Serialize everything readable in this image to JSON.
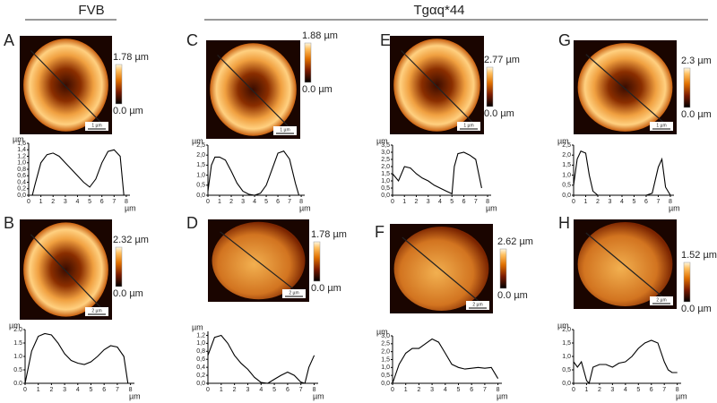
{
  "figure": {
    "groups": [
      "FVB",
      "Tgαq*44"
    ],
    "panels": [
      {
        "letter": "A",
        "scale_max": "1.78 µm",
        "scale_min": "0.0 µm",
        "scale_bar": "1 µm"
      },
      {
        "letter": "B",
        "scale_max": "2.32 µm",
        "scale_min": "0.0 µm",
        "scale_bar": "2 µm"
      },
      {
        "letter": "C",
        "scale_max": "1.88 µm",
        "scale_min": "0.0 µm",
        "scale_bar": "1 µm"
      },
      {
        "letter": "D",
        "scale_max": "1.78 µm",
        "scale_min": "0.0 µm",
        "scale_bar": "2 µm"
      },
      {
        "letter": "E",
        "scale_max": "2.77 µm",
        "scale_min": "0.0 µm",
        "scale_bar": "1 µm"
      },
      {
        "letter": "F",
        "scale_max": "2.62 µm",
        "scale_min": "0.0 µm",
        "scale_bar": "2 µm"
      },
      {
        "letter": "G",
        "scale_max": "2.3 µm",
        "scale_min": "0.0 µm",
        "scale_bar": "1 µm"
      },
      {
        "letter": "H",
        "scale_max": "1.52 µm",
        "scale_min": "0.0 µm",
        "scale_bar": "2 µm"
      }
    ]
  },
  "chart_data": [
    {
      "type": "line",
      "x_label": "µm",
      "y_label": "µm",
      "xlim": [
        0,
        8.3
      ],
      "xticks": [
        0,
        1,
        2,
        3,
        4,
        5,
        6,
        7,
        8
      ],
      "ylim": [
        0,
        1.6
      ],
      "yticks": [
        {
          "value": 0,
          "label": "0,0"
        },
        {
          "value": 0.2,
          "label": "0,2"
        },
        {
          "value": 0.4,
          "label": "0,4"
        },
        {
          "value": 0.6,
          "label": "0,6"
        },
        {
          "value": 0.8,
          "label": "0,8"
        },
        {
          "value": 1,
          "label": "1,0"
        },
        {
          "value": 1.2,
          "label": "1,2"
        },
        {
          "value": 1.4,
          "label": "1,4"
        },
        {
          "value": 1.6,
          "label": "1,6"
        }
      ],
      "x": [
        0.3,
        0.5,
        1,
        1.5,
        2,
        2.5,
        3,
        3.5,
        4,
        4.5,
        5,
        5.5,
        6,
        6.5,
        7,
        7.5,
        7.8
      ],
      "values": [
        0,
        0.3,
        1.0,
        1.25,
        1.3,
        1.2,
        1.0,
        0.8,
        0.6,
        0.4,
        0.25,
        0.5,
        1.0,
        1.35,
        1.4,
        1.2,
        0
      ],
      "color": "#000000"
    },
    {
      "type": "line",
      "x_label": "µm",
      "y_label": "µm",
      "xlim": [
        0,
        8.3
      ],
      "xticks": [
        0,
        1,
        2,
        3,
        4,
        5,
        6,
        7,
        8
      ],
      "ylim": [
        0,
        2
      ],
      "yticks": [
        {
          "value": 0,
          "label": "0.0"
        },
        {
          "value": 0.5,
          "label": "0.5"
        },
        {
          "value": 1,
          "label": "1.0"
        },
        {
          "value": 1.5,
          "label": "1.5"
        },
        {
          "value": 2,
          "label": "2.0"
        }
      ],
      "x": [
        0,
        0.5,
        1,
        1.5,
        2,
        2.5,
        3,
        3.5,
        4,
        4.5,
        5,
        5.5,
        6,
        6.5,
        7,
        7.5,
        7.8
      ],
      "values": [
        0,
        1.2,
        1.75,
        1.85,
        1.8,
        1.5,
        1.1,
        0.85,
        0.75,
        0.7,
        0.8,
        1.0,
        1.25,
        1.4,
        1.35,
        1.0,
        0
      ],
      "color": "#000000"
    },
    {
      "type": "line",
      "x_label": "µm",
      "y_label": "µm",
      "xlim": [
        0,
        8.3
      ],
      "xticks": [
        0,
        1,
        2,
        3,
        4,
        5,
        6,
        7,
        8
      ],
      "ylim": [
        0,
        2.5
      ],
      "yticks": [
        {
          "value": 0,
          "label": "0,0"
        },
        {
          "value": 0.5,
          "label": "0,5"
        },
        {
          "value": 1,
          "label": "1,0"
        },
        {
          "value": 1.5,
          "label": "1,5"
        },
        {
          "value": 2,
          "label": "2,0"
        },
        {
          "value": 2.5,
          "label": "2,5"
        }
      ],
      "x": [
        0,
        0.3,
        0.6,
        1,
        1.5,
        2,
        2.5,
        3,
        3.5,
        4,
        4.5,
        5,
        5.5,
        6,
        6.5,
        7,
        7.5,
        7.8
      ],
      "values": [
        0.2,
        1.5,
        1.9,
        1.9,
        1.75,
        1.2,
        0.6,
        0.2,
        0.05,
        0,
        0.1,
        0.5,
        1.3,
        2.1,
        2.2,
        1.8,
        0.6,
        0
      ],
      "color": "#000000"
    },
    {
      "type": "line",
      "x_label": "µm",
      "y_label": "µm",
      "xlim": [
        0,
        8.3
      ],
      "xticks": [
        0,
        1,
        2,
        3,
        4,
        5,
        6,
        7,
        8
      ],
      "ylim": [
        0,
        1.3
      ],
      "yticks": [
        {
          "value": 0,
          "label": "0,0"
        },
        {
          "value": 0.2,
          "label": "0,2"
        },
        {
          "value": 0.4,
          "label": "0,4"
        },
        {
          "value": 0.6,
          "label": "0,6"
        },
        {
          "value": 0.8,
          "label": "0,8"
        },
        {
          "value": 1,
          "label": "1,0"
        },
        {
          "value": 1.2,
          "label": "1,2"
        }
      ],
      "x": [
        0,
        0.5,
        1,
        1.5,
        2,
        2.5,
        3,
        3.5,
        4,
        4.5,
        5,
        5.5,
        6,
        6.5,
        7,
        7.3,
        7.6,
        8
      ],
      "values": [
        0.7,
        1.15,
        1.2,
        1.0,
        0.7,
        0.5,
        0.35,
        0.15,
        0.02,
        0,
        0.1,
        0.2,
        0.28,
        0.2,
        0.03,
        0,
        0.4,
        0.7
      ],
      "color": "#000000"
    },
    {
      "type": "line",
      "x_label": "µm",
      "y_label": "µm",
      "xlim": [
        0,
        8.3
      ],
      "xticks": [
        0,
        1,
        2,
        3,
        4,
        5,
        6,
        7,
        8
      ],
      "ylim": [
        0,
        3.5
      ],
      "yticks": [
        {
          "value": 0,
          "label": "0,0"
        },
        {
          "value": 0.5,
          "label": "0,5"
        },
        {
          "value": 1,
          "label": "1,0"
        },
        {
          "value": 1.5,
          "label": "1,5"
        },
        {
          "value": 2,
          "label": "2,0"
        },
        {
          "value": 2.5,
          "label": "2,5"
        },
        {
          "value": 3,
          "label": "3,0"
        },
        {
          "value": 3.5,
          "label": "3,5"
        }
      ],
      "x": [
        0,
        0.5,
        1,
        1.5,
        2,
        2.5,
        3,
        3.5,
        4,
        4.5,
        5,
        5.2,
        5.5,
        6,
        6.5,
        7,
        7.5
      ],
      "values": [
        1.5,
        1.0,
        2.0,
        1.9,
        1.5,
        1.2,
        1.0,
        0.7,
        0.5,
        0.3,
        0.1,
        2.0,
        2.9,
        3.0,
        2.8,
        2.5,
        0.5
      ],
      "color": "#000000"
    },
    {
      "type": "line",
      "x_label": "µm",
      "y_label": "µm",
      "xlim": [
        0,
        8.3
      ],
      "xticks": [
        0,
        1,
        2,
        3,
        4,
        5,
        6,
        7,
        8
      ],
      "ylim": [
        0,
        3
      ],
      "yticks": [
        {
          "value": 0,
          "label": "0,0"
        },
        {
          "value": 0.5,
          "label": "0,5"
        },
        {
          "value": 1,
          "label": "1,0"
        },
        {
          "value": 1.5,
          "label": "1,5"
        },
        {
          "value": 2,
          "label": "2,0"
        },
        {
          "value": 2.5,
          "label": "2,5"
        },
        {
          "value": 3,
          "label": "3,0"
        }
      ],
      "x": [
        0,
        0.5,
        1,
        1.5,
        2,
        2.5,
        3,
        3.5,
        4,
        4.5,
        5,
        5.5,
        6,
        6.5,
        7,
        7.5,
        8
      ],
      "values": [
        0,
        1.2,
        1.9,
        2.2,
        2.2,
        2.5,
        2.8,
        2.6,
        1.9,
        1.2,
        1.0,
        0.9,
        0.95,
        1.0,
        0.95,
        1.0,
        0.3
      ],
      "color": "#000000"
    },
    {
      "type": "line",
      "x_label": "µm",
      "y_label": "µm",
      "xlim": [
        0,
        8.3
      ],
      "xticks": [
        0,
        1,
        2,
        3,
        4,
        5,
        6,
        7,
        8
      ],
      "ylim": [
        0,
        2.5
      ],
      "yticks": [
        {
          "value": 0,
          "label": "0,0"
        },
        {
          "value": 0.5,
          "label": "0,5"
        },
        {
          "value": 1,
          "label": "1,0"
        },
        {
          "value": 1.5,
          "label": "1,5"
        },
        {
          "value": 2,
          "label": "2,0"
        },
        {
          "value": 2.5,
          "label": "2,5"
        }
      ],
      "x": [
        0,
        0.3,
        0.6,
        1,
        1.3,
        1.6,
        2,
        3,
        4,
        5,
        6,
        6.5,
        7,
        7.3,
        7.6,
        8
      ],
      "values": [
        0.5,
        1.8,
        2.2,
        2.1,
        1.0,
        0.2,
        0,
        0,
        0,
        0,
        0,
        0.1,
        1.4,
        1.8,
        0.4,
        0
      ],
      "color": "#000000"
    },
    {
      "type": "line",
      "x_label": "µm",
      "y_label": "µm",
      "xlim": [
        0,
        8.3
      ],
      "xticks": [
        0,
        1,
        2,
        3,
        4,
        5,
        6,
        7,
        8
      ],
      "ylim": [
        0,
        2
      ],
      "yticks": [
        {
          "value": 0,
          "label": "0,0"
        },
        {
          "value": 0.5,
          "label": "0,5"
        },
        {
          "value": 1,
          "label": "1,0"
        },
        {
          "value": 1.5,
          "label": "1,5"
        },
        {
          "value": 2,
          "label": "2,0"
        }
      ],
      "x": [
        0,
        0.3,
        0.6,
        1,
        1.2,
        1.5,
        2,
        2.5,
        3,
        3.5,
        4,
        4.5,
        5,
        5.5,
        6,
        6.5,
        7,
        7.3,
        7.6,
        8
      ],
      "values": [
        0.8,
        0.6,
        0.8,
        0.1,
        0,
        0.6,
        0.7,
        0.7,
        0.6,
        0.75,
        0.8,
        1.0,
        1.3,
        1.5,
        1.6,
        1.5,
        0.8,
        0.5,
        0.4,
        0.4
      ],
      "color": "#000000"
    }
  ]
}
